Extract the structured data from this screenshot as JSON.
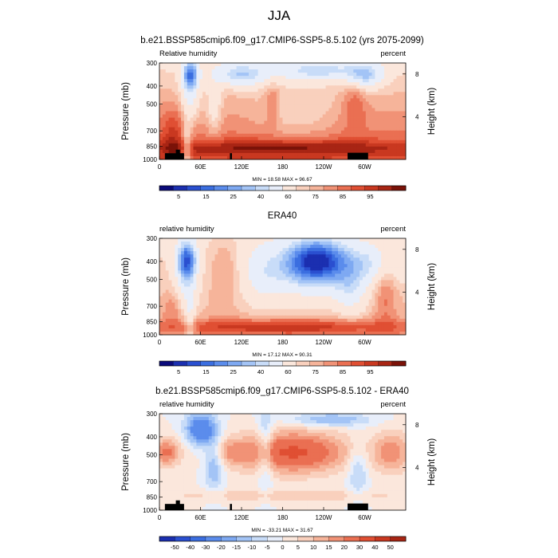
{
  "header": {
    "title": "JJA"
  },
  "colors": {
    "rh_palette": [
      "#0a0a7a",
      "#1b2fb0",
      "#2a4fd0",
      "#3b6ee0",
      "#5b8cec",
      "#7ea9f2",
      "#a3c4f6",
      "#c8dcf8",
      "#e8eefa",
      "#fbe7dc",
      "#f9d0bd",
      "#f6b49a",
      "#f19276",
      "#ea6f52",
      "#e04f33",
      "#c93820",
      "#a82514",
      "#7a1208"
    ],
    "diff_palette": [
      "#0a0a7a",
      "#1b2fb0",
      "#2a4fd0",
      "#3b6ee0",
      "#5b8cec",
      "#7ea9f2",
      "#a3c4f6",
      "#c8dcf8",
      "#e8eefa",
      "#fbe7dc",
      "#f9d0bd",
      "#f6b49a",
      "#f19276",
      "#ea6f52",
      "#e04f33",
      "#c93820",
      "#a82514",
      "#7a1208"
    ],
    "topography": "#000000"
  },
  "panels": [
    {
      "title": "b.e21.BSSP585cmip6.f09_g17.CMIP6-SSP5-8.5.102 (yrs 2075-2099)",
      "left_label": "Relative humidity",
      "right_label": "percent",
      "minmax": "MIN = 18.58  MAX = 96.67",
      "colorbar_labels": [
        "5",
        "15",
        "25",
        "40",
        "60",
        "75",
        "85",
        "95"
      ]
    },
    {
      "title": "ERA40",
      "left_label": "relative humidity",
      "right_label": "percent",
      "minmax": "MIN = 17.12  MAX = 90.31",
      "colorbar_labels": [
        "5",
        "15",
        "25",
        "40",
        "60",
        "75",
        "85",
        "95"
      ]
    },
    {
      "title": "b.e21.BSSP585cmip6.f09_g17.CMIP6-SSP5-8.5.102 - ERA40",
      "left_label": "relative humidity",
      "right_label": "percent",
      "minmax": "MIN = -33.21  MAX = 31.67",
      "colorbar_labels": [
        "-50",
        "-40",
        "-30",
        "-20",
        "-15",
        "-10",
        "-5",
        "0",
        "5",
        "10",
        "15",
        "20",
        "30",
        "40",
        "50"
      ]
    }
  ],
  "chart_data": [
    {
      "type": "heatmap",
      "title": "b.e21.BSSP585cmip6.f09_g17.CMIP6-SSP5-8.5.102 (yrs 2075-2099)",
      "xlabel": "",
      "ylabel": "Pressure (mb)",
      "y2label": "Height (km)",
      "x_ticks": [
        "0",
        "60E",
        "120E",
        "180",
        "120W",
        "60W"
      ],
      "y_ticks": [
        300,
        400,
        500,
        700,
        850,
        1000
      ],
      "y2_ticks": [
        8,
        4
      ],
      "xlim": [
        0,
        360
      ],
      "ylim": [
        1000,
        300
      ],
      "yscale": "log",
      "levels": [
        5,
        10,
        15,
        20,
        25,
        30,
        35,
        40,
        50,
        60,
        65,
        70,
        75,
        80,
        85,
        90,
        95
      ],
      "min": 18.58,
      "max": 96.67
    },
    {
      "type": "heatmap",
      "title": "ERA40",
      "xlabel": "",
      "ylabel": "Pressure (mb)",
      "y2label": "Height (km)",
      "x_ticks": [
        "0",
        "60E",
        "120E",
        "180",
        "120W",
        "60W"
      ],
      "y_ticks": [
        300,
        400,
        500,
        700,
        850,
        1000
      ],
      "y2_ticks": [
        8,
        4
      ],
      "xlim": [
        0,
        360
      ],
      "ylim": [
        1000,
        300
      ],
      "yscale": "log",
      "levels": [
        5,
        10,
        15,
        20,
        25,
        30,
        35,
        40,
        50,
        60,
        65,
        70,
        75,
        80,
        85,
        90,
        95
      ],
      "min": 17.12,
      "max": 90.31
    },
    {
      "type": "heatmap",
      "title": "b.e21.BSSP585cmip6.f09_g17.CMIP6-SSP5-8.5.102 - ERA40",
      "xlabel": "",
      "ylabel": "Pressure (mb)",
      "y2label": "Height (km)",
      "x_ticks": [
        "0",
        "60E",
        "120E",
        "180",
        "120W",
        "60W"
      ],
      "y_ticks": [
        300,
        400,
        500,
        700,
        850,
        1000
      ],
      "y2_ticks": [
        8,
        4
      ],
      "xlim": [
        0,
        360
      ],
      "ylim": [
        1000,
        300
      ],
      "yscale": "log",
      "levels": [
        -50,
        -40,
        -30,
        -20,
        -15,
        -10,
        -5,
        0,
        5,
        10,
        15,
        20,
        30,
        40,
        50
      ],
      "min": -33.21,
      "max": 31.67
    }
  ]
}
